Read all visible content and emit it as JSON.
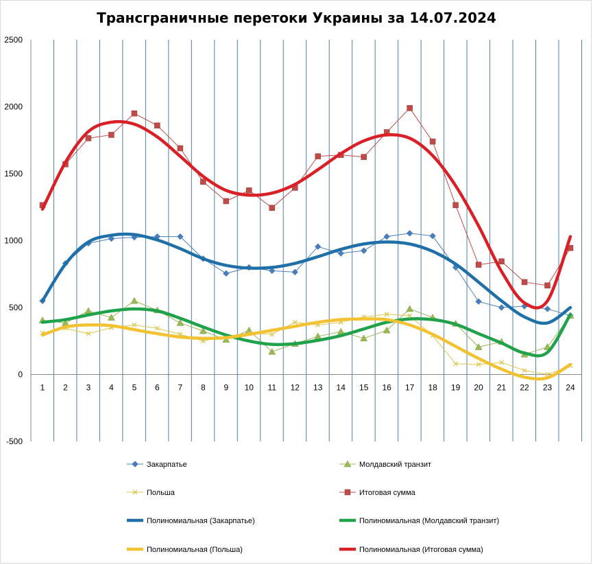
{
  "chart_data": {
    "type": "line",
    "title": "Трансграничные перетоки Украины за 14.07.2024",
    "xlabel": "",
    "ylabel": "",
    "x": [
      "1",
      "2",
      "3",
      "4",
      "5",
      "6",
      "7",
      "8",
      "9",
      "10",
      "11",
      "12",
      "13",
      "14",
      "15",
      "16",
      "17",
      "18",
      "19",
      "20",
      "21",
      "22",
      "23",
      "24"
    ],
    "ylim": [
      -500,
      2500
    ],
    "yticks": [
      "-500",
      "0",
      "500",
      "1000",
      "1500",
      "2000",
      "2500"
    ],
    "grid": "vertical",
    "legend_position": "bottom",
    "series": [
      {
        "name": "Закарпатье",
        "color": "#4a7ebb",
        "marker": "diamond",
        "style": "thin",
        "values": [
          550,
          830,
          980,
          1015,
          1025,
          1030,
          1030,
          865,
          755,
          800,
          775,
          765,
          955,
          905,
          925,
          1030,
          1055,
          1035,
          800,
          545,
          500,
          510,
          490,
          440
        ]
      },
      {
        "name": "Молдавский транзит",
        "color": "#98b954",
        "marker": "triangle",
        "style": "thin",
        "values": [
          405,
          385,
          475,
          425,
          550,
          480,
          385,
          325,
          260,
          330,
          170,
          230,
          285,
          320,
          270,
          330,
          490,
          425,
          380,
          205,
          245,
          150,
          205,
          440
        ]
      },
      {
        "name": "Польша",
        "color": "#dbc84e",
        "marker": "x",
        "style": "thin",
        "values": [
          310,
          345,
          305,
          350,
          370,
          345,
          300,
          250,
          285,
          310,
          300,
          390,
          370,
          390,
          430,
          450,
          440,
          290,
          80,
          75,
          90,
          30,
          0,
          65
        ]
      },
      {
        "name": "Итоговая сумма",
        "color": "#be4b48",
        "marker": "square",
        "style": "thin",
        "values": [
          1265,
          1570,
          1765,
          1790,
          1950,
          1860,
          1690,
          1440,
          1295,
          1375,
          1245,
          1395,
          1630,
          1640,
          1625,
          1810,
          1990,
          1740,
          1265,
          820,
          845,
          690,
          665,
          945
        ]
      },
      {
        "name": "Полиномиальная (Закарпатье)",
        "color": "#1f6fa8",
        "marker": "none",
        "style": "trend",
        "values": [
          550,
          825,
          990,
          1040,
          1045,
          1005,
          940,
          865,
          815,
          795,
          800,
          830,
          880,
          935,
          975,
          990,
          975,
          920,
          825,
          690,
          550,
          430,
          385,
          500
        ]
      },
      {
        "name": "Полиномиальная (Молдавский транзит)",
        "color": "#1fa24a",
        "marker": "none",
        "style": "trend",
        "values": [
          390,
          410,
          445,
          475,
          490,
          475,
          420,
          355,
          295,
          250,
          225,
          230,
          255,
          290,
          340,
          390,
          415,
          410,
          375,
          305,
          235,
          160,
          165,
          450
        ]
      },
      {
        "name": "Полиномиальная (Польша)",
        "color": "#f2c232",
        "marker": "none",
        "style": "trend",
        "values": [
          295,
          355,
          370,
          365,
          335,
          305,
          280,
          270,
          275,
          300,
          330,
          360,
          390,
          410,
          415,
          410,
          370,
          300,
          210,
          120,
          40,
          -20,
          -25,
          75
        ]
      },
      {
        "name": "Полиномиальная (Итоговая сумма)",
        "color": "#d92027",
        "marker": "none",
        "style": "trend",
        "values": [
          1235,
          1585,
          1815,
          1885,
          1870,
          1775,
          1630,
          1480,
          1375,
          1340,
          1355,
          1420,
          1530,
          1650,
          1745,
          1790,
          1765,
          1635,
          1410,
          1110,
          770,
          535,
          550,
          1030
        ]
      }
    ]
  }
}
